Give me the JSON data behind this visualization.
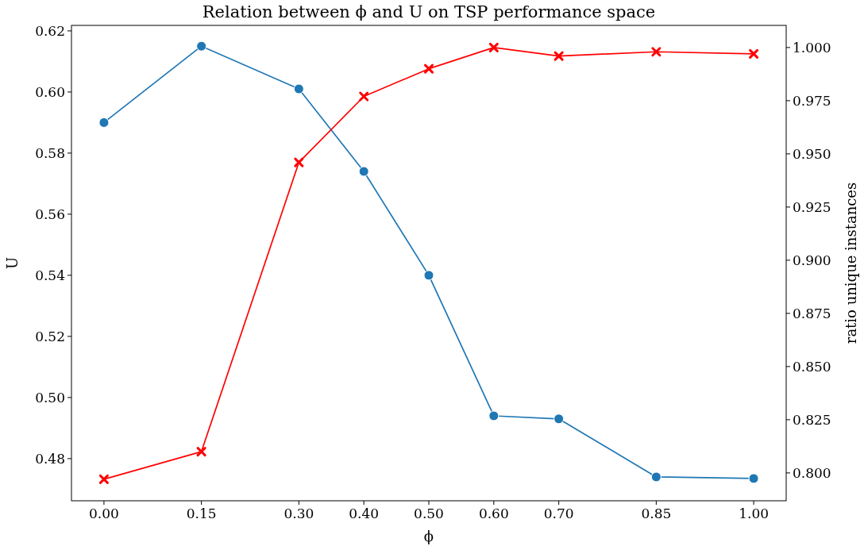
{
  "chart_data": {
    "type": "line",
    "title": "Relation between ϕ and U on TSP performance space",
    "xlabel": "ϕ",
    "ylabel": "U",
    "y2label": "ratio unique instances",
    "x": [
      0,
      0.15,
      0.3,
      0.4,
      0.5,
      0.6,
      0.7,
      0.85,
      1.0
    ],
    "xlim": [
      -0.05,
      1.05
    ],
    "xticks": [
      {
        "value": 0,
        "label": "0.00"
      },
      {
        "value": 0.15,
        "label": "0.15"
      },
      {
        "value": 0.3,
        "label": "0.30"
      },
      {
        "value": 0.4,
        "label": "0.40"
      },
      {
        "value": 0.5,
        "label": "0.50"
      },
      {
        "value": 0.6,
        "label": "0.60"
      },
      {
        "value": 0.7,
        "label": "0.70"
      },
      {
        "value": 0.85,
        "label": "0.85"
      },
      {
        "value": 1.0,
        "label": "1.00"
      }
    ],
    "ylim": [
      0.4662,
      0.6218
    ],
    "yticks": [
      {
        "value": 0.48,
        "label": "0.48"
      },
      {
        "value": 0.5,
        "label": "0.50"
      },
      {
        "value": 0.52,
        "label": "0.52"
      },
      {
        "value": 0.54,
        "label": "0.54"
      },
      {
        "value": 0.56,
        "label": "0.56"
      },
      {
        "value": 0.58,
        "label": "0.58"
      },
      {
        "value": 0.6,
        "label": "0.60"
      },
      {
        "value": 0.62,
        "label": "0.62"
      }
    ],
    "y2lim": [
      0.7869,
      1.0104
    ],
    "y2ticks": [
      {
        "value": 0.8,
        "label": "0.800"
      },
      {
        "value": 0.825,
        "label": "0.825"
      },
      {
        "value": 0.85,
        "label": "0.850"
      },
      {
        "value": 0.875,
        "label": "0.875"
      },
      {
        "value": 0.9,
        "label": "0.900"
      },
      {
        "value": 0.925,
        "label": "0.925"
      },
      {
        "value": 0.95,
        "label": "0.950"
      },
      {
        "value": 0.975,
        "label": "0.975"
      },
      {
        "value": 1.0,
        "label": "1.000"
      }
    ],
    "grid": false,
    "series": [
      {
        "color": "#1f77b4",
        "marker": "circle",
        "values": [
          0.59,
          0.615,
          0.601,
          0.574,
          0.54,
          0.494,
          0.493,
          0.474,
          0.4735
        ]
      },
      {
        "color": "#ff0000",
        "marker": "cross",
        "axis": "y2",
        "values": [
          0.797,
          0.81,
          0.946,
          0.977,
          0.99,
          1.0,
          0.996,
          0.998,
          0.997
        ]
      }
    ]
  }
}
